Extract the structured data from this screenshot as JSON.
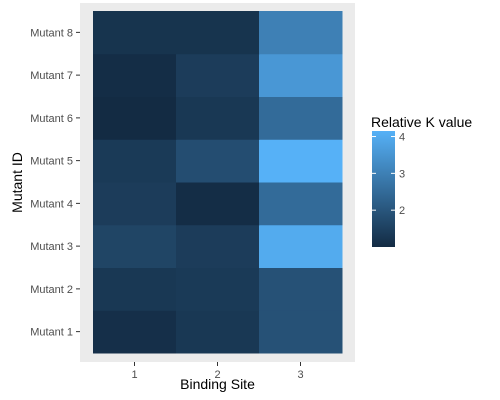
{
  "chart_data": {
    "type": "heatmap",
    "xlabel": "Binding Site",
    "ylabel": "Mutant ID",
    "x_categories": [
      "1",
      "2",
      "3"
    ],
    "y_categories": [
      "Mutant 1",
      "Mutant 2",
      "Mutant 3",
      "Mutant 4",
      "Mutant 5",
      "Mutant 6",
      "Mutant 7",
      "Mutant 8"
    ],
    "cells": [
      {
        "x": "1",
        "y": "Mutant 1",
        "value": 1.1
      },
      {
        "x": "2",
        "y": "Mutant 1",
        "value": 1.3
      },
      {
        "x": "3",
        "y": "Mutant 1",
        "value": 1.9
      },
      {
        "x": "1",
        "y": "Mutant 2",
        "value": 1.3
      },
      {
        "x": "2",
        "y": "Mutant 2",
        "value": 1.35
      },
      {
        "x": "3",
        "y": "Mutant 2",
        "value": 1.9
      },
      {
        "x": "1",
        "y": "Mutant 3",
        "value": 1.6
      },
      {
        "x": "2",
        "y": "Mutant 3",
        "value": 1.4
      },
      {
        "x": "3",
        "y": "Mutant 3",
        "value": 4.0
      },
      {
        "x": "1",
        "y": "Mutant 4",
        "value": 1.4
      },
      {
        "x": "2",
        "y": "Mutant 4",
        "value": 1.05
      },
      {
        "x": "3",
        "y": "Mutant 4",
        "value": 2.5
      },
      {
        "x": "1",
        "y": "Mutant 5",
        "value": 1.35
      },
      {
        "x": "2",
        "y": "Mutant 5",
        "value": 1.8
      },
      {
        "x": "3",
        "y": "Mutant 5",
        "value": 4.15
      },
      {
        "x": "1",
        "y": "Mutant 6",
        "value": 1.0
      },
      {
        "x": "2",
        "y": "Mutant 6",
        "value": 1.3
      },
      {
        "x": "3",
        "y": "Mutant 6",
        "value": 2.5
      },
      {
        "x": "1",
        "y": "Mutant 7",
        "value": 1.05
      },
      {
        "x": "2",
        "y": "Mutant 7",
        "value": 1.4
      },
      {
        "x": "3",
        "y": "Mutant 7",
        "value": 3.55
      },
      {
        "x": "1",
        "y": "Mutant 8",
        "value": 1.2
      },
      {
        "x": "2",
        "y": "Mutant 8",
        "value": 1.2
      },
      {
        "x": "3",
        "y": "Mutant 8",
        "value": 3.0
      }
    ],
    "legend": {
      "title": "Relative K value",
      "placement": "right",
      "min": 1.0,
      "max": 4.15,
      "breaks": [
        2,
        3,
        4
      ],
      "low_color": "#132B43",
      "high_color": "#56B1F7"
    },
    "panel_background": "#EBEBEB",
    "grid": true
  }
}
